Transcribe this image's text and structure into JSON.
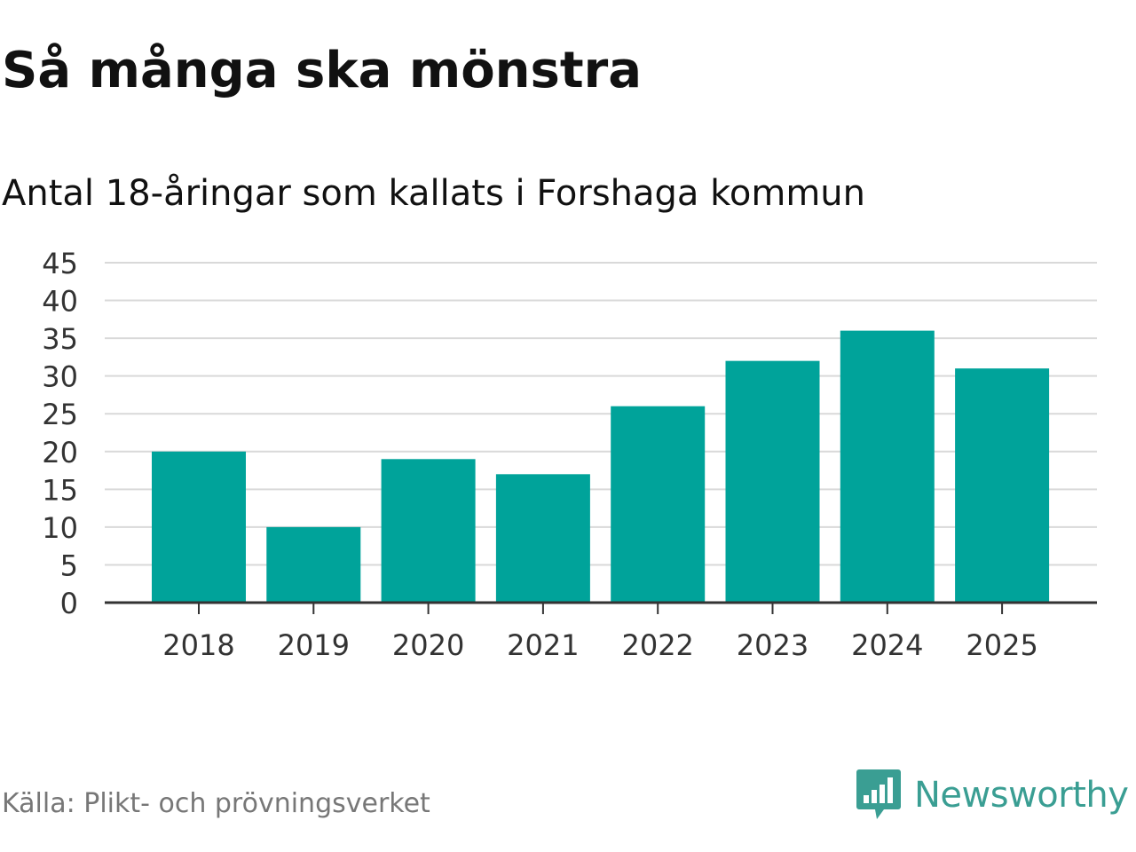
{
  "chart_data": {
    "type": "bar",
    "title": "Så många ska mönstra",
    "subtitle": "Antal 18-åringar som kallats i Forshaga kommun",
    "categories": [
      "2018",
      "2019",
      "2020",
      "2021",
      "2022",
      "2023",
      "2024",
      "2025"
    ],
    "values": [
      20,
      10,
      19,
      17,
      26,
      32,
      36,
      31
    ],
    "ylim": [
      0,
      45
    ],
    "yticks": [
      "0",
      "5",
      "10",
      "15",
      "20",
      "25",
      "30",
      "35",
      "40",
      "45"
    ],
    "xlabel": "",
    "ylabel": "",
    "grid": true,
    "bar_color": "#00a39a",
    "source": "Källa: Plikt- och prövningsverket"
  },
  "brand": {
    "name": "Newsworthy",
    "icon": "newsworthy-logo-icon",
    "color": "#3a9e93"
  }
}
